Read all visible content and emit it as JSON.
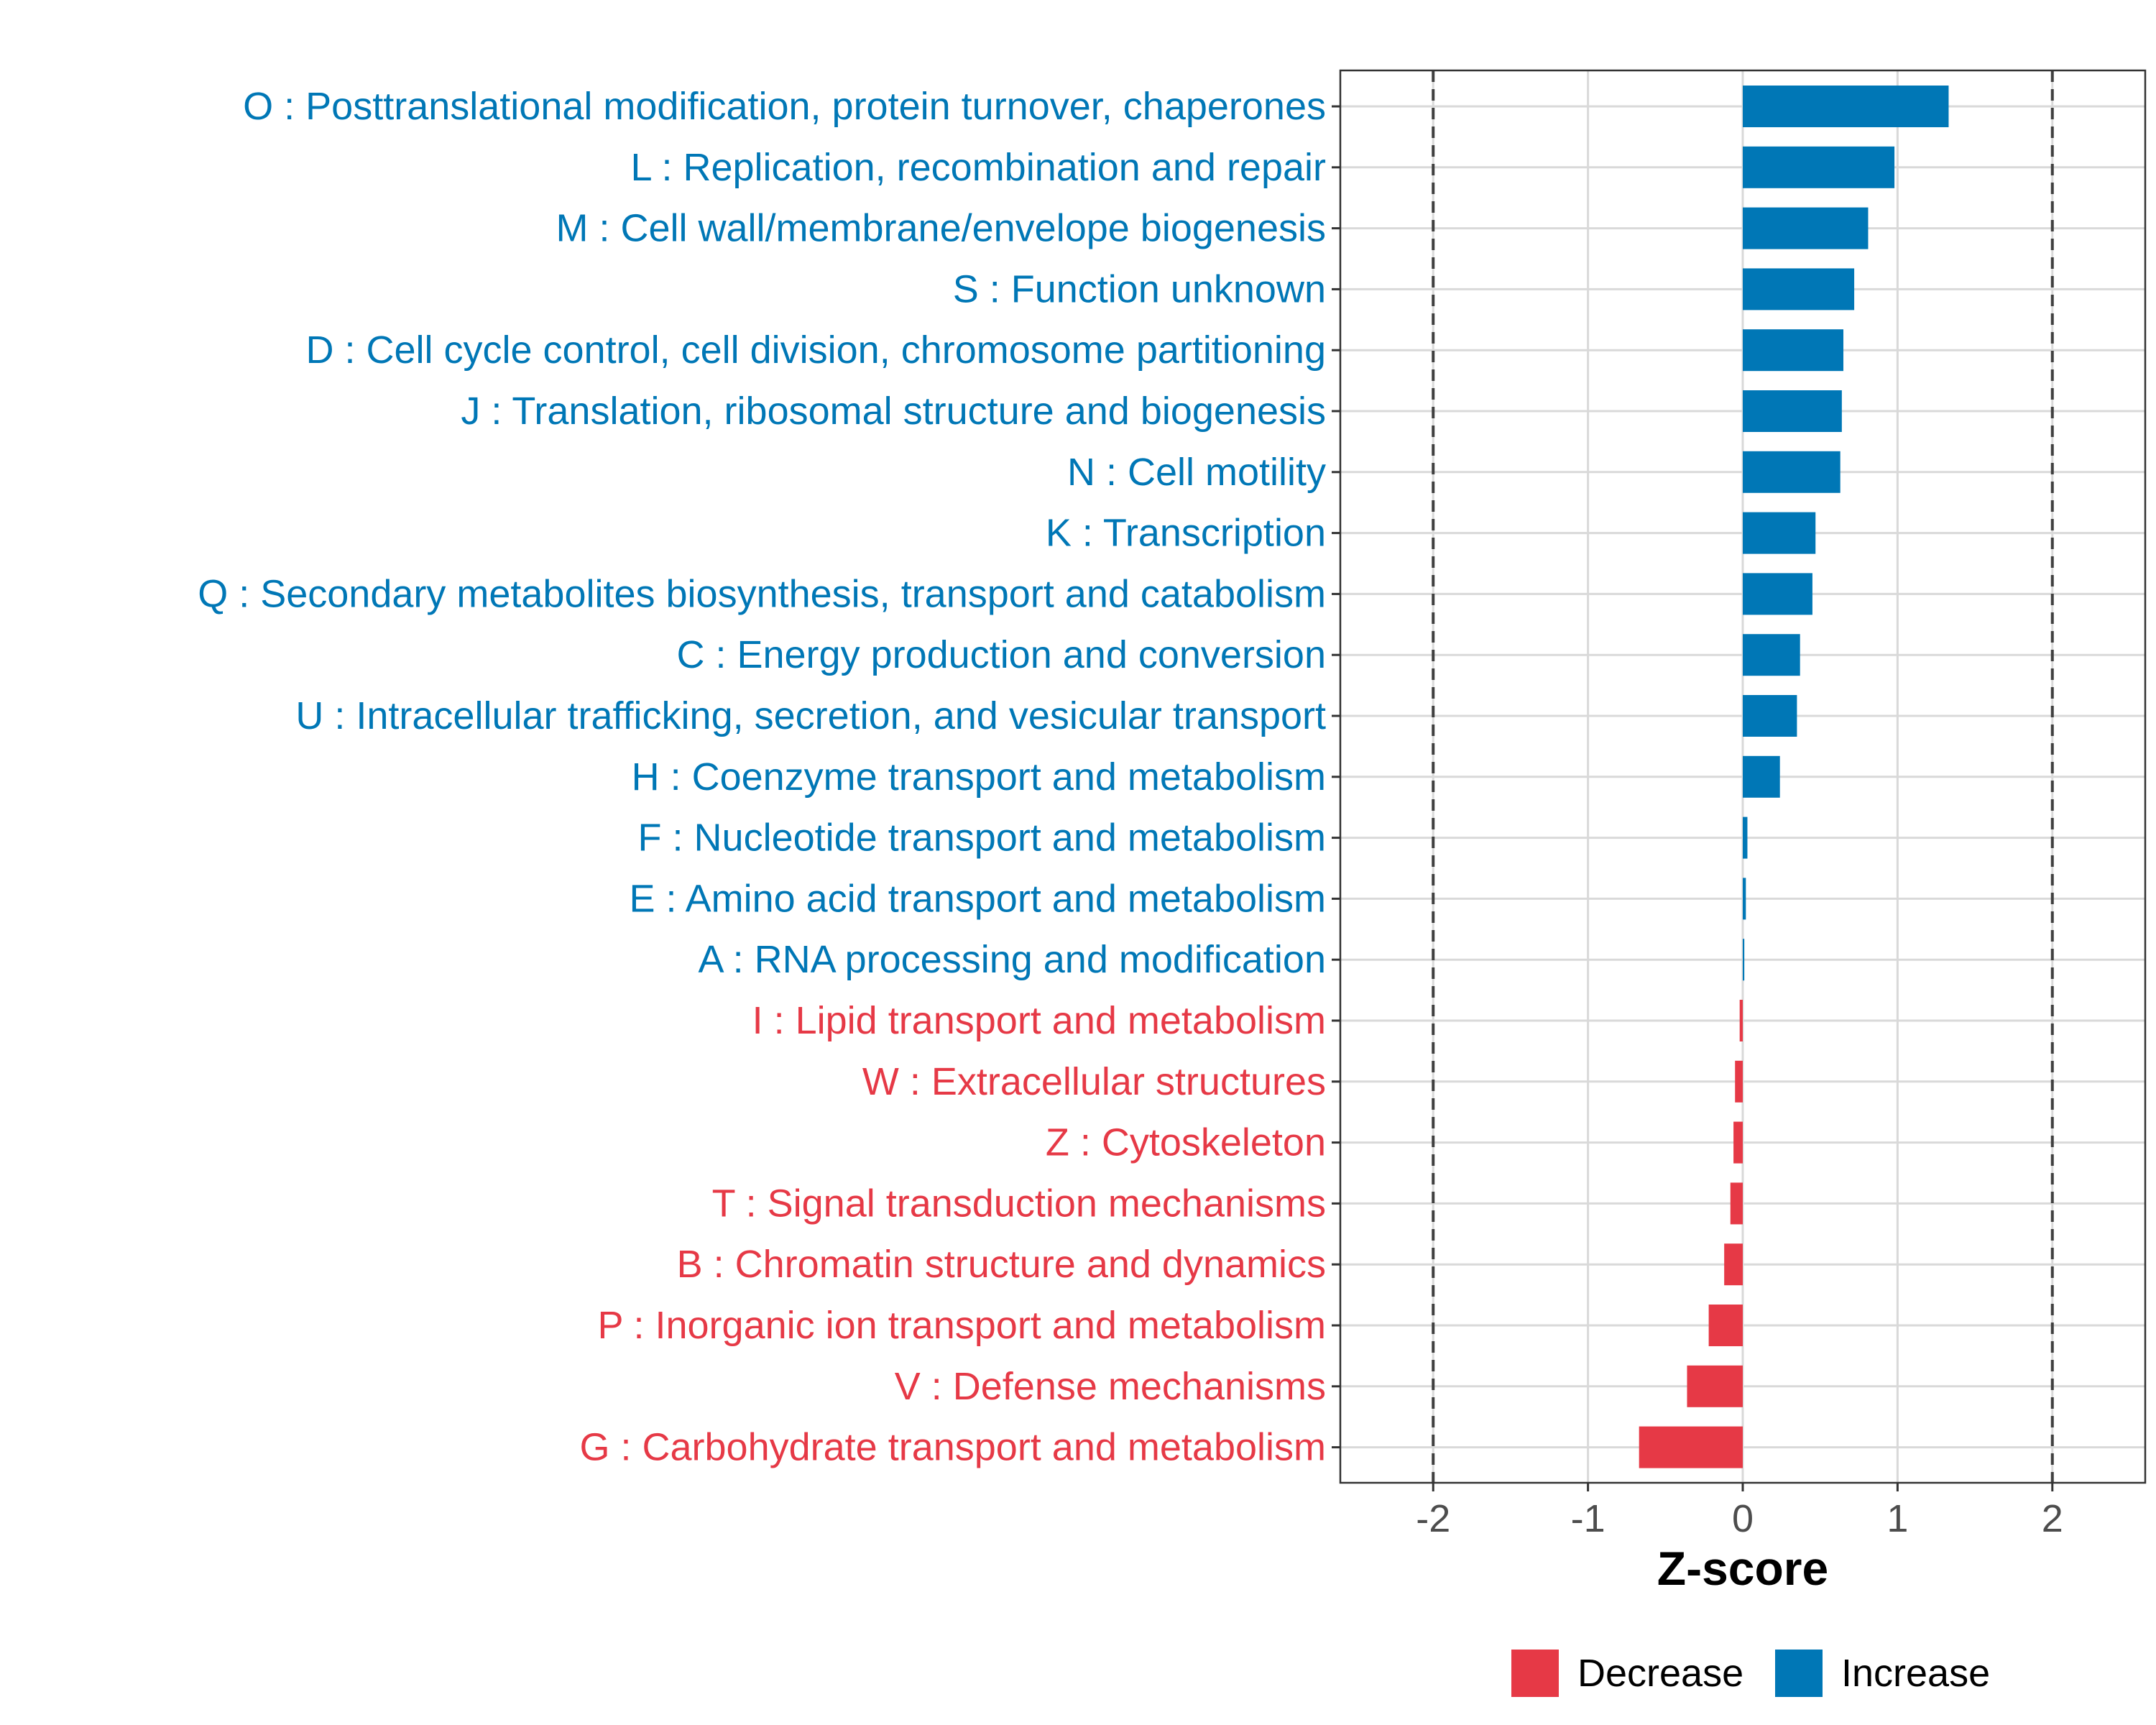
{
  "chart_data": {
    "type": "bar",
    "orientation": "horizontal",
    "title": "",
    "xlabel": "Z-score",
    "ylabel": "",
    "xlim": [
      -2.6,
      2.6
    ],
    "x_ticks": [
      -2,
      -1,
      0,
      1,
      2
    ],
    "x_tick_labels": [
      "-2",
      "-1",
      "0",
      "1",
      "2"
    ],
    "reference_lines": [
      -2,
      2
    ],
    "grid": true,
    "categories": [
      "O : Posttranslational modification, protein turnover, chaperones",
      "L : Replication, recombination and repair",
      "M : Cell wall/membrane/envelope biogenesis",
      "S : Function unknown",
      "D : Cell cycle control, cell division, chromosome partitioning",
      "J : Translation, ribosomal structure and biogenesis",
      "N : Cell motility",
      "K : Transcription",
      "Q : Secondary metabolites biosynthesis, transport and catabolism",
      "C : Energy production and conversion",
      "U : Intracellular trafficking, secretion, and vesicular transport",
      "H : Coenzyme transport and metabolism",
      "F : Nucleotide transport and metabolism",
      "E : Amino acid transport and metabolism",
      "A : RNA processing and modification",
      "I : Lipid transport and metabolism",
      "W : Extracellular structures",
      "Z : Cytoskeleton",
      "T : Signal transduction mechanisms",
      "B : Chromatin structure and dynamics",
      "P : Inorganic ion transport and metabolism",
      "V : Defense mechanisms",
      "G : Carbohydrate transport and metabolism"
    ],
    "values": [
      1.33,
      0.98,
      0.81,
      0.72,
      0.65,
      0.64,
      0.63,
      0.47,
      0.45,
      0.37,
      0.35,
      0.24,
      0.03,
      0.02,
      0.01,
      -0.02,
      -0.05,
      -0.06,
      -0.08,
      -0.12,
      -0.22,
      -0.36,
      -0.67
    ],
    "groups": [
      "Increase",
      "Increase",
      "Increase",
      "Increase",
      "Increase",
      "Increase",
      "Increase",
      "Increase",
      "Increase",
      "Increase",
      "Increase",
      "Increase",
      "Increase",
      "Increase",
      "Increase",
      "Decrease",
      "Decrease",
      "Decrease",
      "Decrease",
      "Decrease",
      "Decrease",
      "Decrease",
      "Decrease"
    ],
    "legend": {
      "position": "bottom",
      "entries": [
        {
          "label": "Decrease",
          "color": "#E63946"
        },
        {
          "label": "Increase",
          "color": "#0077B6"
        }
      ]
    },
    "colors": {
      "Increase": "#0077B6",
      "Decrease": "#E63946",
      "grid": "#D9D9D9",
      "reference_line": "#404040",
      "panel_border": "#333333"
    }
  }
}
